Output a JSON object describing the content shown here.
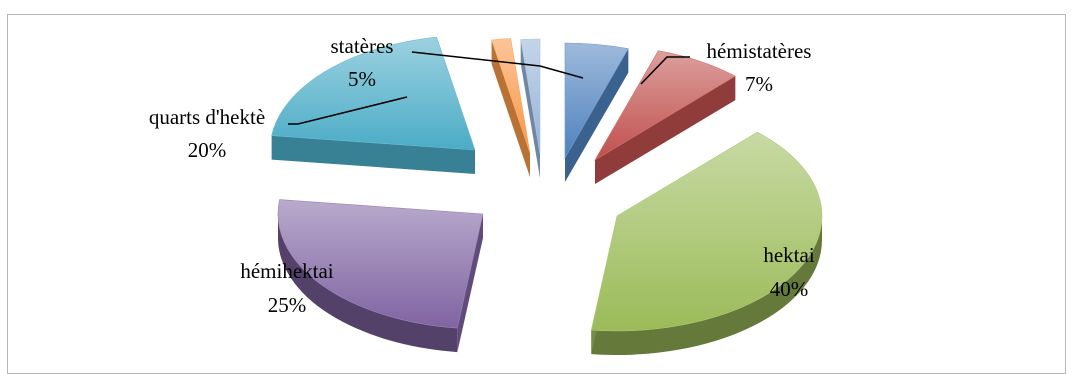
{
  "chart_data": {
    "type": "pie",
    "style": "exploded-3d",
    "slices": [
      {
        "label": "statères",
        "percent_label": "5%",
        "value": 5,
        "color": "#4f81bd"
      },
      {
        "label": "hémistatères",
        "percent_label": "7%",
        "value": 7,
        "color": "#c0504d"
      },
      {
        "label": "hektai",
        "percent_label": "40%",
        "value": 40,
        "color": "#9bbb59"
      },
      {
        "label": "hémihektai",
        "percent_label": "25%",
        "value": 25,
        "color": "#8064a2"
      },
      {
        "label": "quarts d'hektè",
        "percent_label": "20%",
        "value": 20,
        "color": "#4bacc6"
      },
      {
        "label": "",
        "percent_label": "",
        "value": 1.5,
        "color": "#f79646"
      },
      {
        "label": "",
        "percent_label": "",
        "value": 1.5,
        "color": "#95b3d7"
      }
    ],
    "legend": "none"
  }
}
